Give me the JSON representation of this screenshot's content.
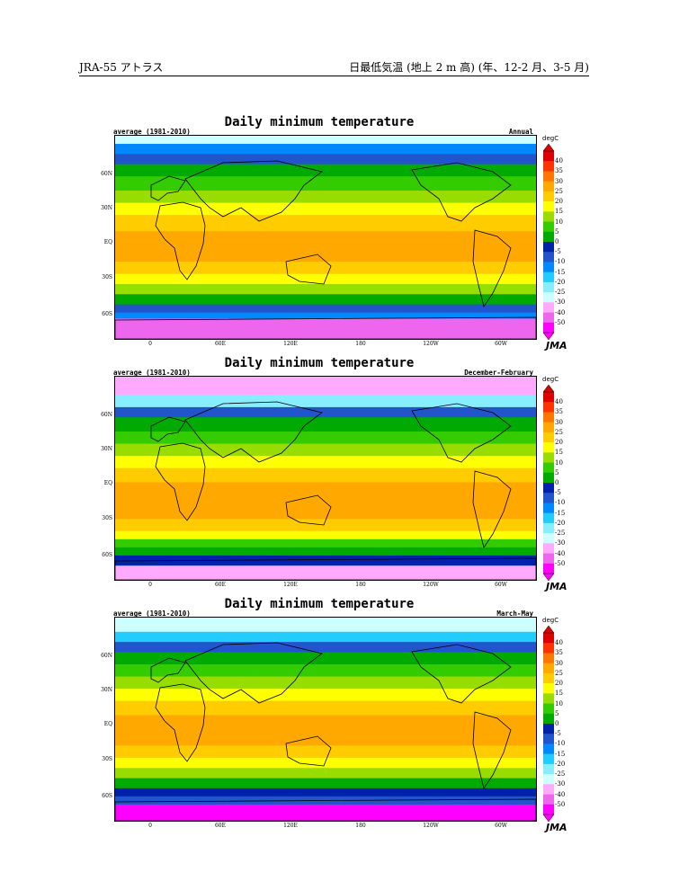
{
  "header": {
    "left": "JRA-55 アトラス",
    "right": "日最低気温 (地上 2 m 高) (年、12-2 月、3-5 月)"
  },
  "colors": {
    "levels": [
      "#ff00ff",
      "#ee66ee",
      "#ffaaff",
      "#ccffff",
      "#88eeff",
      "#22ccff",
      "#0088ff",
      "#2255cc",
      "#0022aa",
      "#00aa00",
      "#33cc00",
      "#99dd00",
      "#ffff00",
      "#ffcc00",
      "#ffa800",
      "#ff7700",
      "#ff3300",
      "#dd0000"
    ],
    "land_outline": "#000000"
  },
  "panels": [
    {
      "title": "Daily minimum temperature",
      "left_label": "average (1981-2010)",
      "right_label": "Annual",
      "unit": "degC",
      "ticks": [
        "40",
        "35",
        "30",
        "25",
        "20",
        "15",
        "10",
        "5",
        "0",
        "-5",
        "-10",
        "-15",
        "-20",
        "-25",
        "-30",
        "-40",
        "-50"
      ],
      "lat_labels": [
        "60N",
        "30N",
        "EQ",
        "30S",
        "60S"
      ],
      "lon_labels": [
        "0",
        "60E",
        "120E",
        "180",
        "120W",
        "60W"
      ],
      "logo": "JMA"
    },
    {
      "title": "Daily minimum temperature",
      "left_label": "average (1981-2010)",
      "right_label": "December-February",
      "unit": "degC",
      "ticks": [
        "40",
        "35",
        "30",
        "25",
        "20",
        "15",
        "10",
        "5",
        "0",
        "-5",
        "-10",
        "-15",
        "-20",
        "-25",
        "-30",
        "-40",
        "-50"
      ],
      "lat_labels": [
        "60N",
        "30N",
        "EQ",
        "30S",
        "60S"
      ],
      "lon_labels": [
        "0",
        "60E",
        "120E",
        "180",
        "120W",
        "60W"
      ],
      "logo": "JMA"
    },
    {
      "title": "Daily minimum temperature",
      "left_label": "average (1981-2010)",
      "right_label": "March-May",
      "unit": "degC",
      "ticks": [
        "40",
        "35",
        "30",
        "25",
        "20",
        "15",
        "10",
        "5",
        "0",
        "-5",
        "-10",
        "-15",
        "-20",
        "-25",
        "-30",
        "-40",
        "-50"
      ],
      "lat_labels": [
        "60N",
        "30N",
        "EQ",
        "30S",
        "60S"
      ],
      "lon_labels": [
        "0",
        "60E",
        "120E",
        "180",
        "120W",
        "60W"
      ],
      "logo": "JMA"
    }
  ]
}
